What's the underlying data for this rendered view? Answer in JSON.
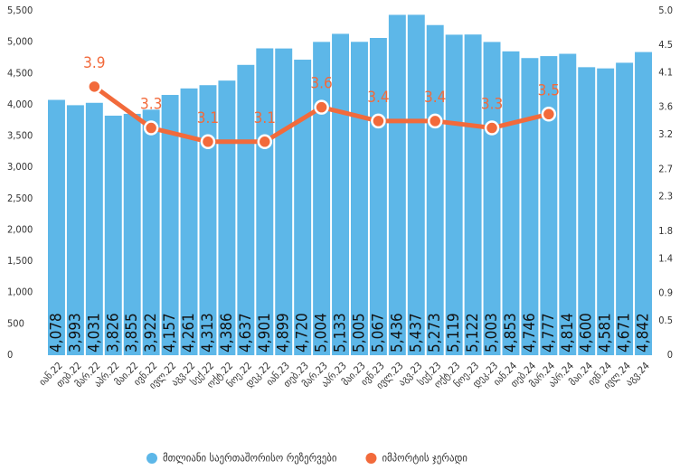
{
  "chart_data": {
    "type": "bar",
    "categories": [
      "იან.22",
      "თებ.22",
      "მარ.22",
      "აპრ.22",
      "მაი.22",
      "ივნ.22",
      "ივლ.22",
      "აგვ.22",
      "სექ.22",
      "ოქტ.22",
      "ნოე.22",
      "დეკ.22",
      "იან.23",
      "თებ.23",
      "მარ.23",
      "აპრ.23",
      "მაი.23",
      "ივნ.23",
      "ივლ.23",
      "აგვ.23",
      "სექ.23",
      "ოქტ.23",
      "ნოე.23",
      "დეკ.23",
      "იან.24",
      "თებ.24",
      "მარ.24",
      "აპრ.24",
      "მაი.24",
      "ივნ.24",
      "ივლ.24",
      "აგვ.24"
    ],
    "series": [
      {
        "name": "მთლიანი საერთაშორისო რეზერვები",
        "type": "bar",
        "color": "#5db7e8",
        "values": [
          4078,
          3993,
          4031,
          3826,
          3855,
          3922,
          4157,
          4261,
          4313,
          4386,
          4637,
          4901,
          4899,
          4720,
          5004,
          5133,
          5005,
          5067,
          5436,
          5437,
          5273,
          5119,
          5122,
          5003,
          4853,
          4746,
          4777,
          4814,
          4600,
          4581,
          4671,
          4842
        ],
        "value_labels": [
          "4,078",
          "3,993",
          "4,031",
          "3,826",
          "3,855",
          "3,922",
          "4,157",
          "4,261",
          "4,313",
          "4,386",
          "4,637",
          "4,901",
          "4,899",
          "4,720",
          "5,004",
          "5,133",
          "5,005",
          "5,067",
          "5,436",
          "5,437",
          "5,273",
          "5,119",
          "5,122",
          "5,003",
          "4,853",
          "4,746",
          "4,777",
          "4,814",
          "4,600",
          "4,581",
          "4,671",
          "4,842"
        ]
      },
      {
        "name": "იმპორტის ჯერადი",
        "type": "line",
        "axis": "y2",
        "color": "#f26a3b",
        "x": [
          "მარ.22",
          "ივნ.22",
          "სექ.22",
          "დეკ.22",
          "მარ.23",
          "ივნ.23",
          "სექ.23",
          "დეკ.23",
          "მარ.24"
        ],
        "values": [
          3.9,
          3.3,
          3.1,
          3.1,
          3.6,
          3.4,
          3.4,
          3.3,
          3.5
        ]
      }
    ],
    "ylim": [
      0,
      5500
    ],
    "yticks": [
      0,
      500,
      {
        "value": 1000,
        "label": "1,000"
      },
      {
        "value": 1500,
        "label": "1,500"
      },
      {
        "value": 2000,
        "label": "2,000"
      },
      {
        "value": 2500,
        "label": "2,500"
      },
      {
        "value": 3000,
        "label": "3,000"
      },
      {
        "value": 3500,
        "label": "3,500"
      },
      {
        "value": 4000,
        "label": "4,000"
      },
      {
        "value": 4500,
        "label": "4,500"
      },
      {
        "value": 5000,
        "label": "5,000"
      },
      {
        "value": 5500,
        "label": "5,500"
      }
    ],
    "y2lim": [
      0,
      5
    ],
    "y2ticks": [
      0,
      0.5,
      0.9,
      1.4,
      1.8,
      2.3,
      2.7,
      3.2,
      3.6,
      4.1,
      4.5,
      {
        "value": 5,
        "label": "5.0"
      }
    ],
    "legend": "bottom"
  }
}
